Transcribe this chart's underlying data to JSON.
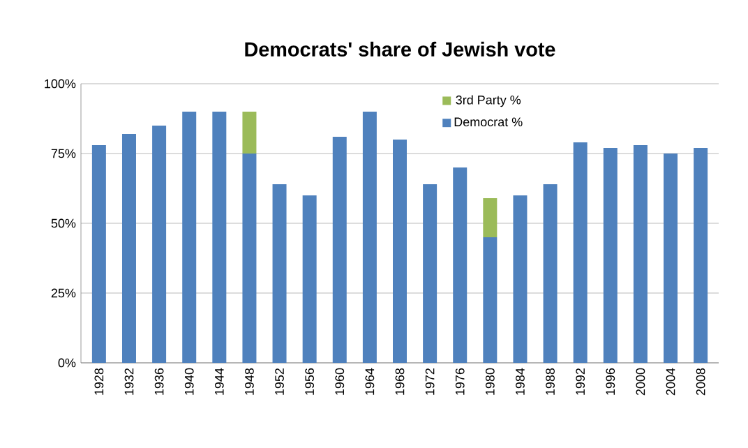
{
  "chart_data": {
    "type": "bar",
    "title": "Democrats' share of Jewish vote",
    "stacked": true,
    "categories": [
      "1928",
      "1932",
      "1936",
      "1940",
      "1944",
      "1948",
      "1952",
      "1956",
      "1960",
      "1964",
      "1968",
      "1972",
      "1976",
      "1980",
      "1984",
      "1988",
      "1992",
      "1996",
      "2000",
      "2004",
      "2008"
    ],
    "series": [
      {
        "name": "Democrat %",
        "color": "#4f81bd",
        "values": [
          78,
          82,
          85,
          90,
          90,
          75,
          64,
          60,
          81,
          90,
          80,
          64,
          70,
          45,
          60,
          64,
          79,
          77,
          78,
          75,
          77
        ]
      },
      {
        "name": "3rd Party %",
        "color": "#9bbb59",
        "values": [
          null,
          null,
          null,
          null,
          null,
          15,
          null,
          null,
          null,
          null,
          null,
          null,
          null,
          14,
          null,
          null,
          null,
          null,
          null,
          null,
          null
        ]
      }
    ],
    "ylim": [
      0,
      100
    ],
    "yticks": [
      {
        "value": 0,
        "label": "0%"
      },
      {
        "value": 25,
        "label": "25%"
      },
      {
        "value": 50,
        "label": "50%"
      },
      {
        "value": 75,
        "label": "75%"
      },
      {
        "value": 100,
        "label": "100%"
      }
    ],
    "grid": "y",
    "legend": "top right"
  }
}
